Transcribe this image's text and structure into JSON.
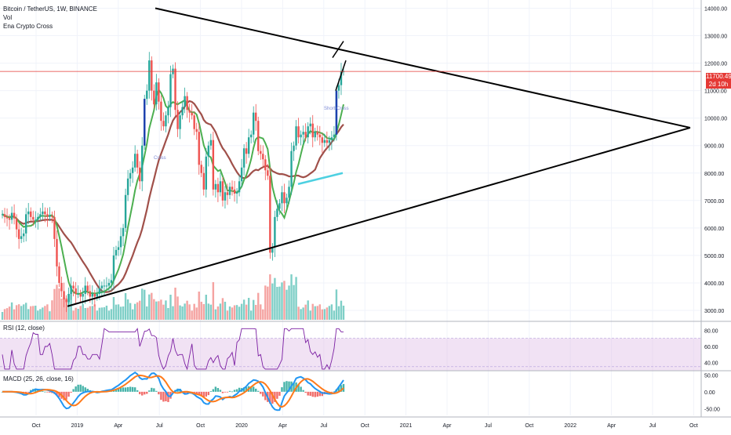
{
  "header": {
    "symbol_line": "Bitcoin / TetherUS, 1W, BINANCE",
    "vol_label": "Vol",
    "indicator_label": "Ena Crypto Cross"
  },
  "price_axis": {
    "ticks": [
      "14000.00",
      "13000.00",
      "12000.00",
      "11000.00",
      "10000.00",
      "9000.00",
      "8000.00",
      "7000.00",
      "6000.00",
      "5000.00",
      "4000.00",
      "3000.00"
    ],
    "last_price": "11700.49",
    "countdown": "2d 10h"
  },
  "time_axis": {
    "ticks": [
      "Oct",
      "2019",
      "Apr",
      "Jul",
      "Oct",
      "2020",
      "Apr",
      "Jul",
      "Oct",
      "2021",
      "Apr",
      "Jul",
      "Oct",
      "2022",
      "Apr",
      "Jul",
      "Oct"
    ]
  },
  "annotations": {
    "cross_low": "Cross",
    "cross_high": "Short Cross"
  },
  "rsi": {
    "label": "RSI (12, close)",
    "ticks": [
      "80.00",
      "60.00",
      "40.00"
    ]
  },
  "macd": {
    "label": "MACD (25, 26, close, 16)",
    "ticks": [
      "50.00",
      "0.00",
      "-50.00"
    ]
  },
  "colors": {
    "up": "#26a69a",
    "down": "#ef5350",
    "brown_ma": "#a0504a",
    "green_ma": "#4caf50",
    "trendline": "#000000",
    "price_line": "#e53935",
    "rsi_line": "#7b1fa2",
    "rsi_band": "#e1bee7",
    "macd_line": "#2196f3",
    "signal_line": "#ff7a1a",
    "cyan_segment": "#4dd0e1",
    "blue_candle": "#1e40af"
  },
  "chart_data": {
    "type": "candlestick",
    "title": "Bitcoin / TetherUS, 1W, BINANCE",
    "ylim": [
      2600,
      14300
    ],
    "y_scale": "linear",
    "grid": true,
    "close_series": [
      6500,
      6400,
      6350,
      6300,
      6550,
      6350,
      5950,
      5600,
      5700,
      5800,
      6500,
      6600,
      6400,
      6300,
      6300,
      6400,
      6500,
      6600,
      6500,
      6400,
      6450,
      6400,
      5600,
      4600,
      4000,
      3700,
      3400,
      3300,
      3600,
      3900,
      3800,
      3600,
      3600,
      3500,
      3600,
      3900,
      3700,
      3500,
      3600,
      3500,
      3600,
      3800,
      3900,
      3900,
      3900,
      4000,
      4100,
      5000,
      5200,
      5300,
      5700,
      6000,
      7200,
      7800,
      8000,
      8200,
      8700,
      8200,
      7700,
      9000,
      10700,
      11000,
      12100,
      11000,
      10500,
      11300,
      10600,
      9900,
      9700,
      10100,
      10400,
      11600,
      11800,
      10300,
      9600,
      10100,
      10400,
      10800,
      10300,
      10200,
      10100,
      9600,
      9500,
      8300,
      8000,
      7400,
      8600,
      9000,
      9200,
      7400,
      7600,
      7300,
      7700,
      7000,
      7300,
      7200,
      7500,
      7400,
      7250,
      7300,
      7700,
      8200,
      8900,
      8700,
      9300,
      9400,
      10200,
      9900,
      8800,
      8700,
      8500,
      8100,
      7900,
      5100,
      5300,
      6400,
      6700,
      6900,
      7300,
      6900,
      7100,
      7500,
      8800,
      9000,
      9700,
      9300,
      9400,
      9500,
      9300,
      9700,
      9800,
      9300,
      9500,
      9400,
      9300,
      9100,
      9200,
      9100,
      9200,
      9300,
      9400,
      11000,
      11200,
      11700,
      11700
    ],
    "series": [
      {
        "name": "Vol",
        "type": "volume"
      }
    ],
    "annotations": [
      "Cross",
      "Short Cross"
    ],
    "rsi_range": [
      30,
      90
    ],
    "macd_range": [
      -70,
      60
    ]
  }
}
